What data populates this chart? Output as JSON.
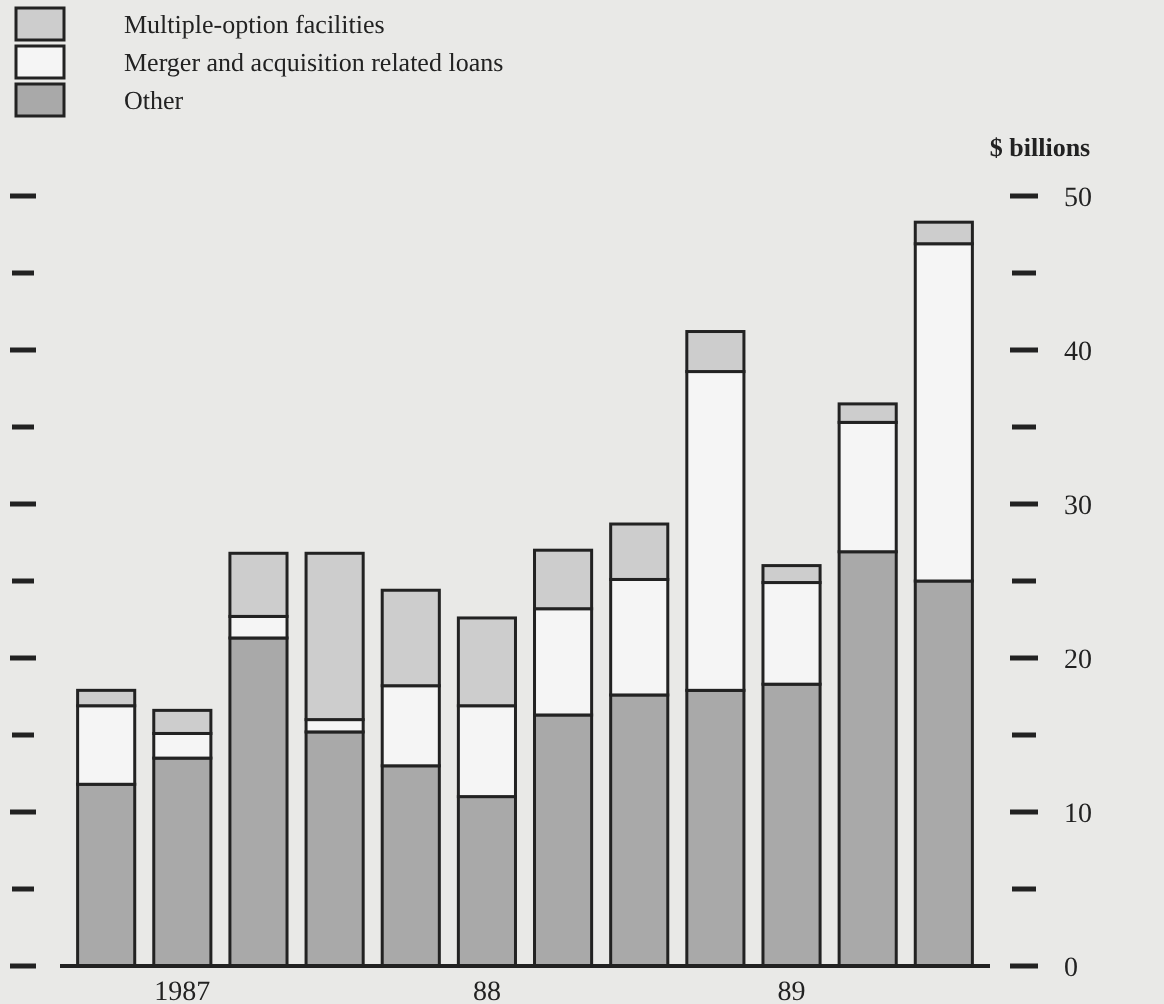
{
  "chart_data": {
    "type": "bar",
    "stacked": true,
    "ylabel": "$ billions",
    "categories": [
      null,
      "1987",
      null,
      null,
      null,
      "88",
      null,
      null,
      null,
      "89",
      null,
      null
    ],
    "series": [
      {
        "name": "Other",
        "color": "#a9a9a9",
        "values": [
          11.8,
          13.5,
          21.3,
          15.2,
          13.0,
          11.0,
          16.3,
          17.6,
          17.9,
          18.3,
          26.9,
          25.0
        ]
      },
      {
        "name": "Merger and acquisition related loans",
        "color": "#f5f5f5",
        "values": [
          5.1,
          1.6,
          1.4,
          0.8,
          5.2,
          5.9,
          6.9,
          7.5,
          20.7,
          6.6,
          8.4,
          21.9
        ]
      },
      {
        "name": "Multiple-option facilities",
        "color": "#cdcdcd",
        "values": [
          1.0,
          1.5,
          4.1,
          10.8,
          6.2,
          5.7,
          3.8,
          3.6,
          2.6,
          1.1,
          1.2,
          1.4
        ]
      }
    ],
    "ylim": [
      0,
      50
    ],
    "yticks": [
      0,
      {
        "value": 5,
        "label": null
      },
      10,
      {
        "value": 15,
        "label": null
      },
      20,
      {
        "value": 25,
        "label": null
      },
      30,
      {
        "value": 35,
        "label": null
      },
      40,
      {
        "value": 45,
        "label": null
      },
      50
    ],
    "legend": "top left",
    "grid": false
  }
}
